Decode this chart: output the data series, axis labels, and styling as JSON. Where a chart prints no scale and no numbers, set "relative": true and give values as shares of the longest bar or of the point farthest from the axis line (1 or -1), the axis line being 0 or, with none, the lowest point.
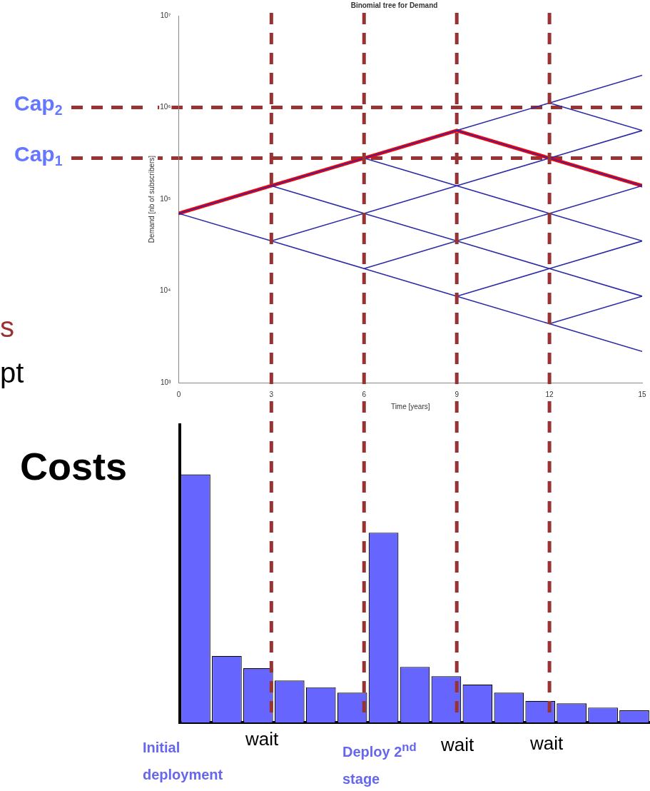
{
  "chart_data": [
    {
      "type": "line",
      "title": "Binomial tree for Demand",
      "xlabel": "Time [years]",
      "ylabel": "Demand [nb of subscribers]",
      "xlim": [
        0,
        15
      ],
      "xticks": [
        0,
        3,
        6,
        9,
        12,
        15
      ],
      "ylim": [
        1000,
        10000000
      ],
      "yticks": [
        {
          "value": 1000,
          "label": "10³"
        },
        {
          "value": 10000,
          "label": "10⁴"
        },
        {
          "value": 100000,
          "label": "10⁵"
        },
        {
          "value": 1000000,
          "label": "10⁶"
        },
        {
          "value": 10000000,
          "label": "10⁷"
        }
      ],
      "log": "y",
      "marker": "none",
      "line_style": "solid",
      "series": [
        {
          "color": "#2b2ba6",
          "x": [
            0,
            3,
            6,
            9,
            12,
            15
          ],
          "values": [
            70000,
            140000,
            280000,
            560000,
            1120000,
            2240000
          ]
        },
        {
          "color": "#2b2ba6",
          "x": [
            3,
            6,
            9,
            12,
            15
          ],
          "values": [
            35000,
            70000,
            140000,
            280000,
            560000
          ]
        },
        {
          "color": "#2b2ba6",
          "x": [
            6,
            9,
            12,
            15
          ],
          "values": [
            17500,
            35000,
            70000,
            140000
          ]
        },
        {
          "color": "#2b2ba6",
          "x": [
            9,
            12,
            15
          ],
          "values": [
            8750,
            17500,
            35000
          ]
        },
        {
          "color": "#2b2ba6",
          "x": [
            12,
            15
          ],
          "values": [
            4380,
            8750
          ]
        },
        {
          "color": "#2b2ba6",
          "x": [
            0,
            3,
            6,
            9,
            12,
            15
          ],
          "values": [
            70000,
            35000,
            17500,
            8750,
            4380,
            2190
          ]
        },
        {
          "color": "#2b2ba6",
          "x": [
            3,
            6,
            9,
            12,
            15
          ],
          "values": [
            140000,
            70000,
            35000,
            17500,
            8750
          ]
        },
        {
          "color": "#2b2ba6",
          "x": [
            6,
            9,
            12,
            15
          ],
          "values": [
            280000,
            140000,
            70000,
            35000
          ]
        },
        {
          "color": "#2b2ba6",
          "x": [
            9,
            12,
            15
          ],
          "values": [
            560000,
            280000,
            140000
          ]
        },
        {
          "color": "#2b2ba6",
          "x": [
            12,
            15
          ],
          "values": [
            1120000,
            560000
          ]
        },
        {
          "color": "#ff0000",
          "x": [
            0,
            3,
            6,
            9,
            12,
            15
          ],
          "values": [
            70000,
            140000,
            280000,
            560000,
            280000,
            140000
          ]
        }
      ],
      "ref_lines": [
        {
          "axis": "y",
          "value": 1000000,
          "label": "Cap$_{2}$",
          "color": "#993333",
          "line_style": "dashed"
        },
        {
          "axis": "y",
          "value": 280000,
          "label": "Cap$_{1}$",
          "color": "#993333",
          "line_style": "dashed"
        },
        {
          "axis": "x",
          "value": 3,
          "label": null,
          "color": "#993333",
          "line_style": "dashed"
        },
        {
          "axis": "x",
          "value": 6,
          "label": null,
          "color": "#993333",
          "line_style": "dashed"
        },
        {
          "axis": "x",
          "value": 9,
          "label": null,
          "color": "#993333",
          "line_style": "dashed"
        },
        {
          "axis": "x",
          "value": 12,
          "label": null,
          "color": "#993333",
          "line_style": "dashed"
        }
      ],
      "annotations": [
        "s",
        "pt"
      ]
    },
    {
      "type": "bar",
      "title": "Costs",
      "categories": [
        null,
        null,
        null,
        null,
        null,
        null,
        null,
        null,
        null,
        null,
        null,
        null,
        null,
        null,
        null
      ],
      "values": [
        1,
        0.268,
        0.219,
        0.169,
        0.142,
        0.12,
        0.765,
        0.224,
        0.186,
        0.153,
        0.12,
        0.087,
        0.077,
        0.06,
        0.049
      ],
      "color": "#6666ff",
      "relative": true,
      "annotations": [
        "Initial deployment",
        "wait",
        "Deploy 2$^{nd}$ stage",
        "wait",
        "wait"
      ]
    }
  ]
}
